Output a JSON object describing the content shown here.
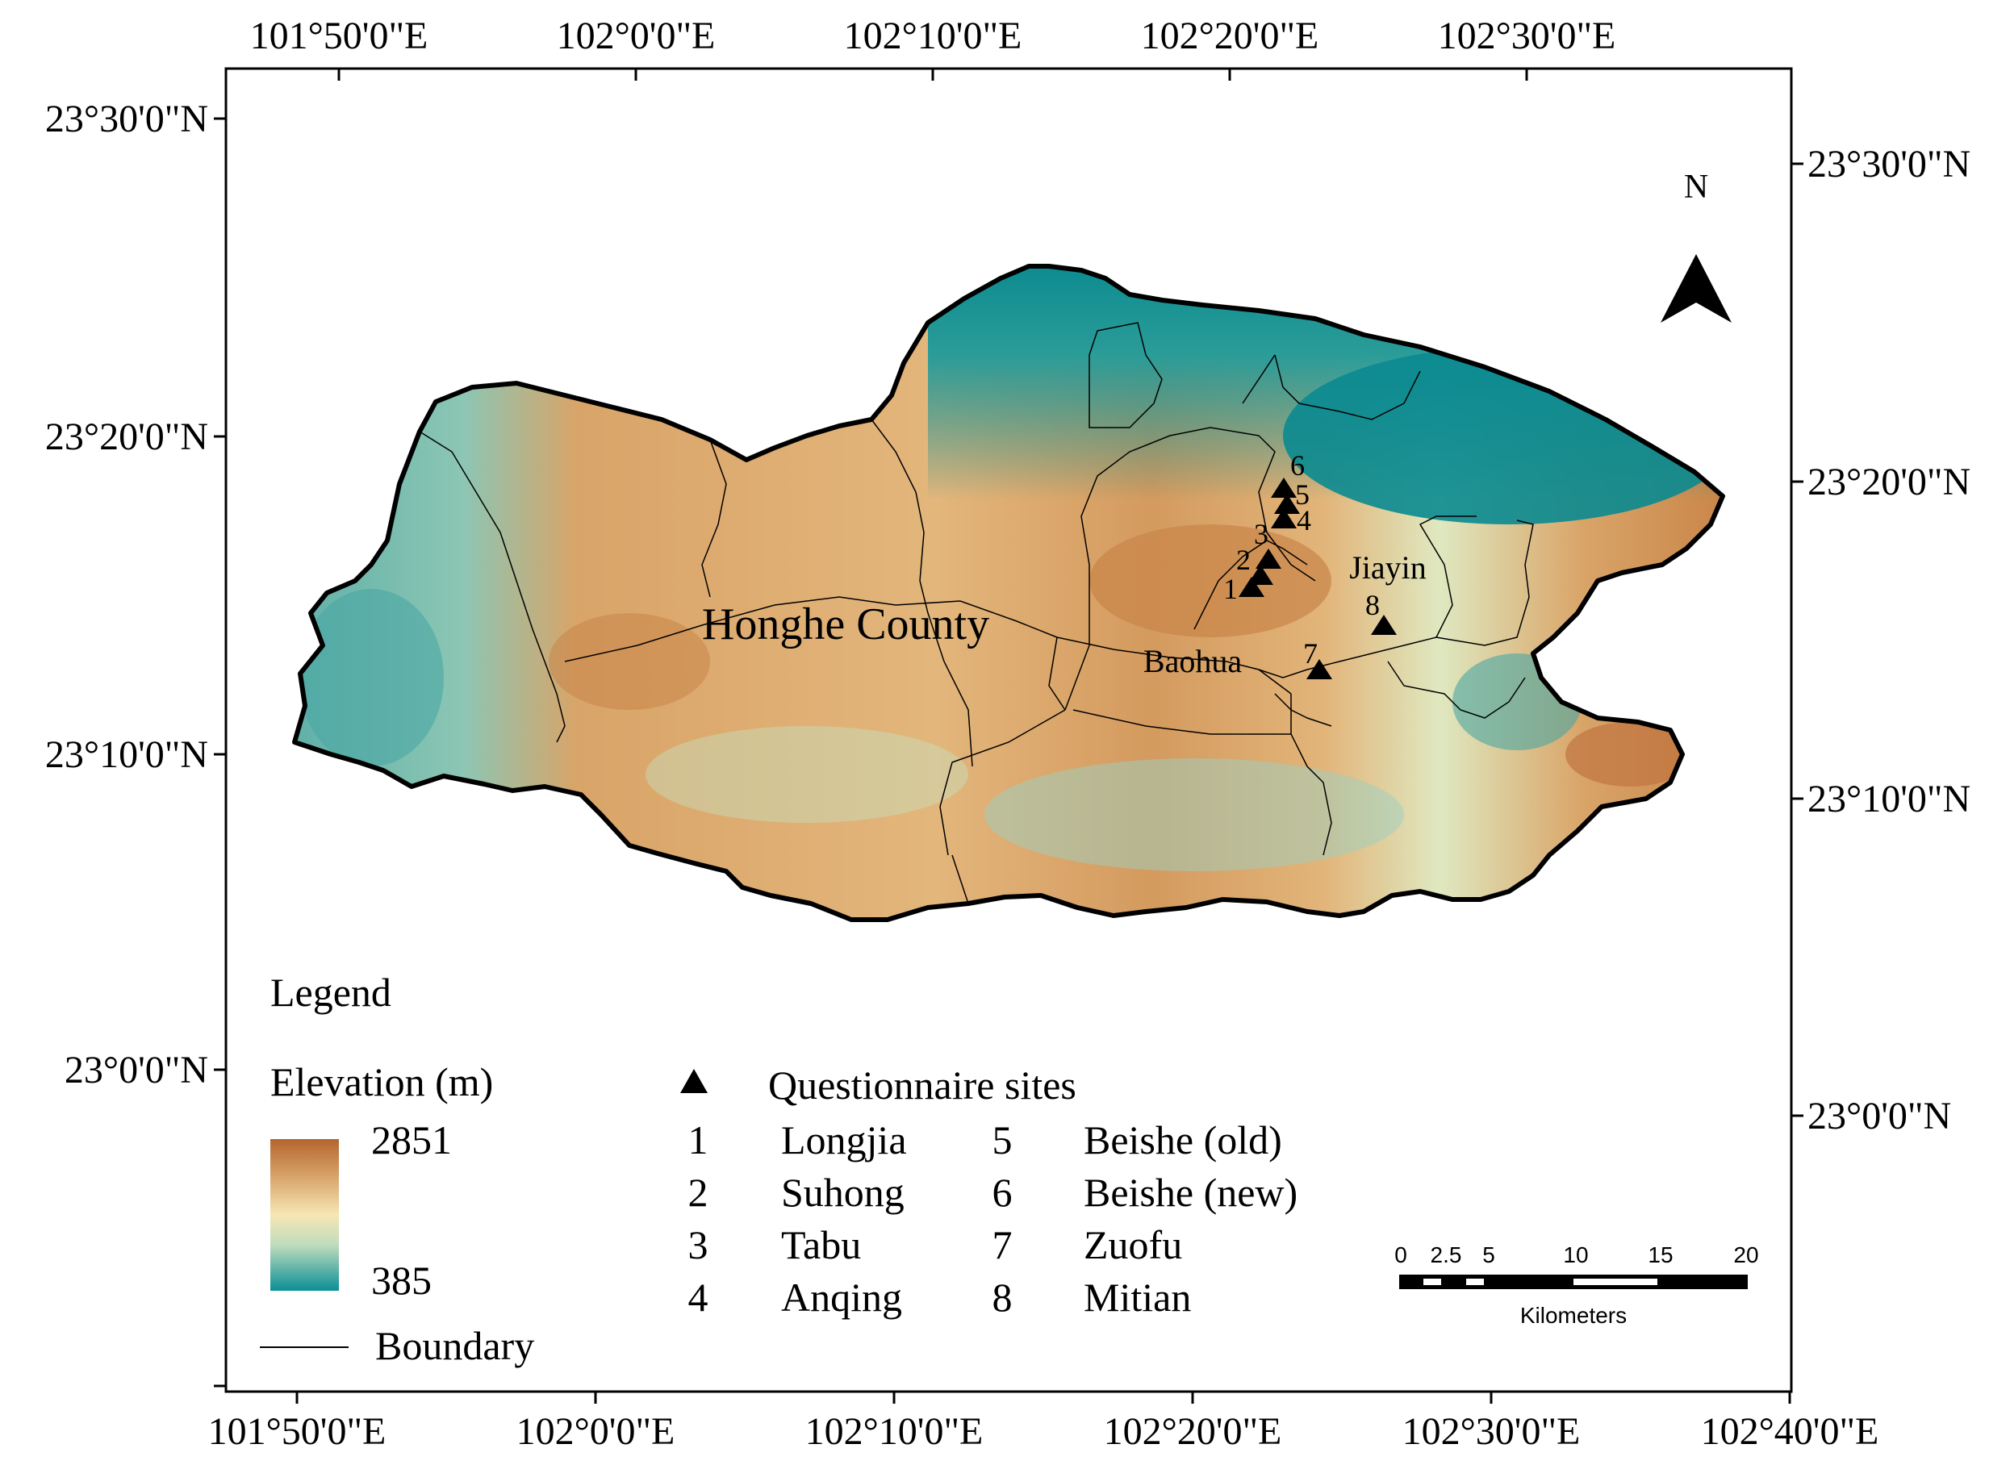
{
  "axes": {
    "top_lon": [
      "101°50'0\"E",
      "102°0'0\"E",
      "102°10'0\"E",
      "102°20'0\"E",
      "102°30'0\"E"
    ],
    "bottom_lon": [
      "101°50'0\"E",
      "102°0'0\"E",
      "102°10'0\"E",
      "102°20'0\"E",
      "102°30'0\"E",
      "102°40'0\"E"
    ],
    "left_lat": [
      "23°30'0\"N",
      "23°20'0\"N",
      "23°10'0\"N",
      "23°0'0\"N"
    ],
    "right_lat": [
      "23°30'0\"N",
      "23°20'0\"N",
      "23°10'0\"N",
      "23°0'0\"N"
    ]
  },
  "north_arrow": {
    "label": "N",
    "icon": "north-arrow-icon"
  },
  "labels": {
    "county": "Honghe County",
    "townships": [
      "Baohua",
      "Jiayin"
    ]
  },
  "sites": [
    {
      "number": "1",
      "name": "Longjia"
    },
    {
      "number": "2",
      "name": "Suhong"
    },
    {
      "number": "3",
      "name": "Tabu"
    },
    {
      "number": "4",
      "name": "Anqing"
    },
    {
      "number": "5",
      "name": "Beishe (old)"
    },
    {
      "number": "6",
      "name": "Beishe (new)"
    },
    {
      "number": "7",
      "name": "Zuofu"
    },
    {
      "number": "8",
      "name": "Mitian"
    }
  ],
  "legend": {
    "title": "Legend",
    "elevation_title": "Elevation (m)",
    "elevation_max": "2851",
    "elevation_min": "385",
    "sites_label": "Questionnaire sites",
    "boundary_label": "Boundary",
    "colors": {
      "high": "#b5652e",
      "mid": "#f6e7b4",
      "low": "#0a8f95"
    }
  },
  "scale_bar": {
    "ticks": [
      "0",
      "2.5",
      "5",
      "10",
      "15",
      "20"
    ],
    "unit": "Kilometers"
  }
}
